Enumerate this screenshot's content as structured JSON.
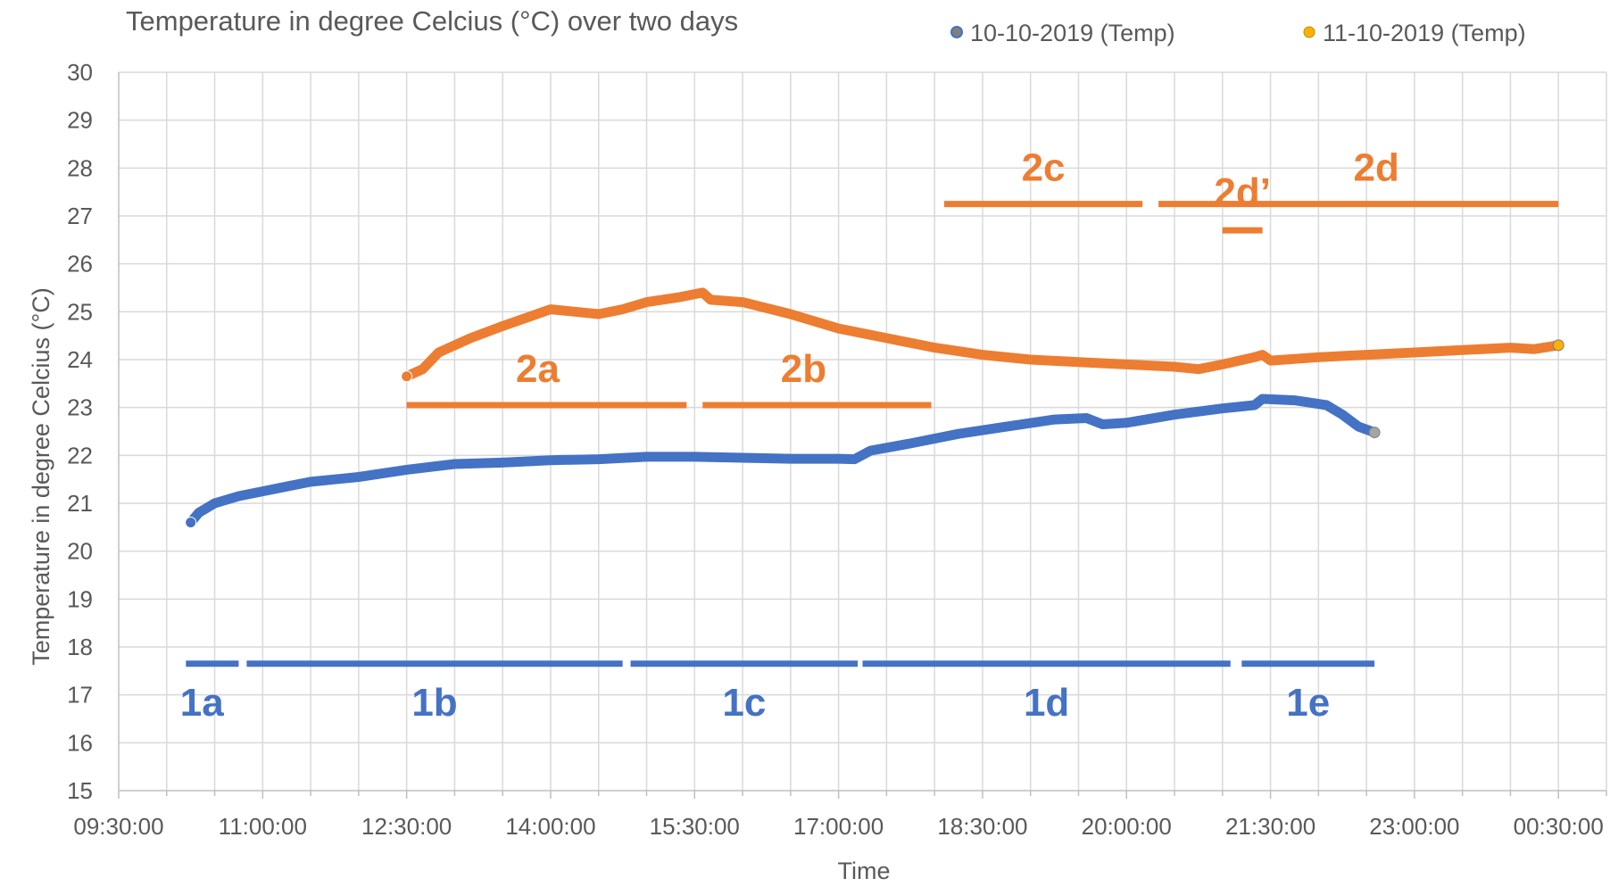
{
  "chart_data": {
    "type": "scatter",
    "title": "Temperature in degree Celcius (°C) over two days",
    "xlabel": "Time",
    "ylabel": "Temperature in degree Celcius (°C)",
    "ylim": [
      15,
      30
    ],
    "xlim": [
      "09:30:00",
      "01:00:00"
    ],
    "x_ticks": [
      "09:30:00",
      "11:00:00",
      "12:30:00",
      "14:00:00",
      "15:30:00",
      "17:00:00",
      "18:30:00",
      "20:00:00",
      "21:30:00",
      "23:00:00",
      "00:30:00"
    ],
    "y_ticks": [
      15,
      16,
      17,
      18,
      19,
      20,
      21,
      22,
      23,
      24,
      25,
      26,
      27,
      28,
      29,
      30
    ],
    "grid": true,
    "legend_position": "top-right",
    "series": [
      {
        "name": "10-10-2019 (Temp)",
        "color": "#4472c4",
        "points": [
          [
            "10:15:00",
            20.6
          ],
          [
            "10:20:00",
            20.8
          ],
          [
            "10:30:00",
            21.0
          ],
          [
            "10:45:00",
            21.15
          ],
          [
            "11:00:00",
            21.25
          ],
          [
            "11:15:00",
            21.35
          ],
          [
            "11:30:00",
            21.45
          ],
          [
            "12:00:00",
            21.55
          ],
          [
            "12:30:00",
            21.7
          ],
          [
            "13:00:00",
            21.82
          ],
          [
            "13:30:00",
            21.85
          ],
          [
            "14:00:00",
            21.9
          ],
          [
            "14:30:00",
            21.92
          ],
          [
            "15:00:00",
            21.97
          ],
          [
            "15:30:00",
            21.97
          ],
          [
            "16:00:00",
            21.95
          ],
          [
            "16:30:00",
            21.93
          ],
          [
            "17:00:00",
            21.93
          ],
          [
            "17:10:00",
            21.92
          ],
          [
            "17:20:00",
            22.1
          ],
          [
            "17:45:00",
            22.25
          ],
          [
            "18:15:00",
            22.45
          ],
          [
            "18:45:00",
            22.6
          ],
          [
            "19:15:00",
            22.75
          ],
          [
            "19:35:00",
            22.78
          ],
          [
            "19:45:00",
            22.65
          ],
          [
            "20:00:00",
            22.68
          ],
          [
            "20:30:00",
            22.85
          ],
          [
            "21:00:00",
            22.98
          ],
          [
            "21:20:00",
            23.05
          ],
          [
            "21:25:00",
            23.18
          ],
          [
            "21:45:00",
            23.15
          ],
          [
            "22:05:00",
            23.05
          ],
          [
            "22:15:00",
            22.85
          ],
          [
            "22:25:00",
            22.6
          ],
          [
            "22:35:00",
            22.48
          ]
        ]
      },
      {
        "name": "11-10-2019 (Temp)",
        "color": "#ffb000",
        "line_color": "#ed7d31",
        "points": [
          [
            "12:30:00",
            23.65
          ],
          [
            "12:40:00",
            23.8
          ],
          [
            "12:50:00",
            24.15
          ],
          [
            "13:10:00",
            24.45
          ],
          [
            "13:30:00",
            24.7
          ],
          [
            "14:00:00",
            25.05
          ],
          [
            "14:15:00",
            25.0
          ],
          [
            "14:30:00",
            24.95
          ],
          [
            "14:45:00",
            25.05
          ],
          [
            "15:00:00",
            25.2
          ],
          [
            "15:20:00",
            25.3
          ],
          [
            "15:35:00",
            25.4
          ],
          [
            "15:40:00",
            25.25
          ],
          [
            "16:00:00",
            25.2
          ],
          [
            "16:30:00",
            24.95
          ],
          [
            "17:00:00",
            24.65
          ],
          [
            "17:30:00",
            24.45
          ],
          [
            "18:00:00",
            24.25
          ],
          [
            "18:30:00",
            24.1
          ],
          [
            "19:00:00",
            24.0
          ],
          [
            "19:30:00",
            23.95
          ],
          [
            "20:00:00",
            23.9
          ],
          [
            "20:30:00",
            23.85
          ],
          [
            "20:45:00",
            23.8
          ],
          [
            "21:00:00",
            23.9
          ],
          [
            "21:20:00",
            24.05
          ],
          [
            "21:25:00",
            24.1
          ],
          [
            "21:30:00",
            23.98
          ],
          [
            "22:00:00",
            24.05
          ],
          [
            "22:30:00",
            24.1
          ],
          [
            "23:00:00",
            24.15
          ],
          [
            "23:30:00",
            24.2
          ],
          [
            "00:00:00",
            24.25
          ],
          [
            "00:15:00",
            24.22
          ],
          [
            "00:30:00",
            24.3
          ]
        ]
      }
    ],
    "annotations": [
      {
        "label": "1a",
        "color": "#4472c4",
        "line": [
          "10:12:00",
          "10:45:00"
        ],
        "y": 17.65
      },
      {
        "label": "1b",
        "color": "#4472c4",
        "line": [
          "10:50:00",
          "14:45:00"
        ],
        "y": 17.65
      },
      {
        "label": "1c",
        "color": "#4472c4",
        "line": [
          "14:50:00",
          "17:12:00"
        ],
        "y": 17.65
      },
      {
        "label": "1d",
        "color": "#4472c4",
        "line": [
          "17:15:00",
          "21:05:00"
        ],
        "y": 17.65
      },
      {
        "label": "1e",
        "color": "#4472c4",
        "line": [
          "21:12:00",
          "22:35:00"
        ],
        "y": 17.65
      },
      {
        "label": "2a",
        "color": "#ed7d31",
        "line": [
          "12:30:00",
          "15:25:00"
        ],
        "y": 23.05
      },
      {
        "label": "2b",
        "color": "#ed7d31",
        "line": [
          "15:35:00",
          "17:58:00"
        ],
        "y": 23.05
      },
      {
        "label": "2c",
        "color": "#ed7d31",
        "line": [
          "18:06:00",
          "20:10:00"
        ],
        "y": 27.25
      },
      {
        "label": "2d’",
        "color": "#ed7d31",
        "line": [
          "21:00:00",
          "21:25:00"
        ],
        "y": 26.7
      },
      {
        "label": "2d",
        "color": "#ed7d31",
        "line": [
          "20:20:00",
          "00:30:00"
        ],
        "y": 27.25
      }
    ]
  }
}
